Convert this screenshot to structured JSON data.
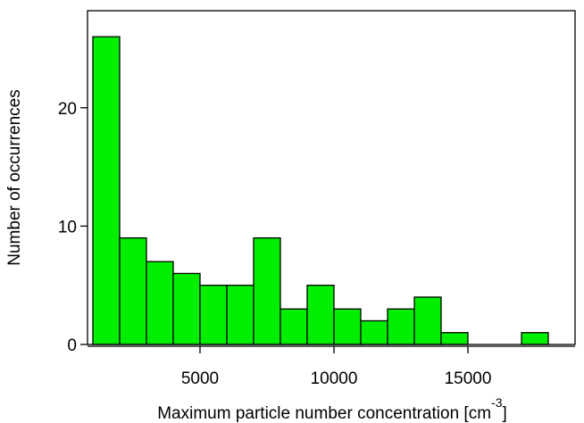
{
  "chart_data": {
    "type": "histogram",
    "xlabel": "Maximum particle number concentration [cm",
    "xlabel_superscript": "-3",
    "xlabel_suffix": "]",
    "ylabel": "Number of occurrences",
    "bins": [
      1000,
      2000,
      3000,
      4000,
      5000,
      6000,
      7000,
      8000,
      9000,
      10000,
      11000,
      12000,
      13000,
      14000,
      15000,
      16000,
      17000,
      18000
    ],
    "values": [
      26,
      9,
      7,
      6,
      5,
      5,
      9,
      3,
      5,
      3,
      2,
      3,
      4,
      1,
      0,
      0,
      1
    ],
    "color": "#00ee00",
    "xlim": [
      800,
      19000
    ],
    "ylim": [
      0,
      28.2
    ],
    "xticks": [
      5000,
      10000,
      15000
    ],
    "yticks": [
      0,
      10,
      20
    ]
  }
}
